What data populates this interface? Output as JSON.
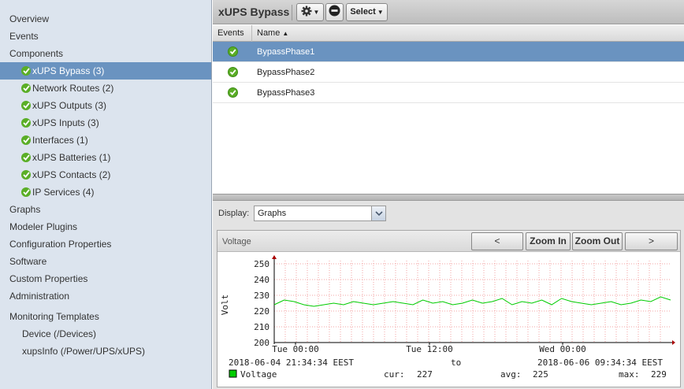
{
  "sidebar": {
    "items": [
      {
        "label": "Overview"
      },
      {
        "label": "Events"
      },
      {
        "label": "Components"
      },
      {
        "label": "xUPS Bypass (3)"
      },
      {
        "label": "Network Routes (2)"
      },
      {
        "label": "xUPS Outputs (3)"
      },
      {
        "label": "xUPS Inputs (3)"
      },
      {
        "label": "Interfaces (1)"
      },
      {
        "label": "xUPS Batteries (1)"
      },
      {
        "label": "xUPS Contacts (2)"
      },
      {
        "label": "IP Services (4)"
      },
      {
        "label": "Graphs"
      },
      {
        "label": "Modeler Plugins"
      },
      {
        "label": "Configuration Properties"
      },
      {
        "label": "Software"
      },
      {
        "label": "Custom Properties"
      },
      {
        "label": "Administration"
      },
      {
        "label": "Monitoring Templates"
      },
      {
        "label": "Device (/Devices)"
      },
      {
        "label": "xupsInfo (/Power/UPS/xUPS)"
      }
    ]
  },
  "toolbar": {
    "title": "xUPS Bypass",
    "gear_icon": "gear-icon",
    "stop_icon": "minus-circle-icon",
    "select_label": "Select"
  },
  "grid": {
    "columns": {
      "events": "Events",
      "name": "Name"
    },
    "rows": [
      {
        "name": "BypassPhase1",
        "status": "ok"
      },
      {
        "name": "BypassPhase2",
        "status": "ok"
      },
      {
        "name": "BypassPhase3",
        "status": "ok"
      }
    ]
  },
  "display": {
    "label": "Display:",
    "value": "Graphs"
  },
  "graph": {
    "title": "Voltage",
    "prev_label": "<",
    "zoom_in_label": "Zoom In",
    "zoom_out_label": "Zoom Out",
    "next_label": ">",
    "ylabel": "Volt",
    "start": "2018-06-04 21:34:34 EEST",
    "to": "to",
    "end": "2018-06-06 09:34:34 EEST",
    "legend": "Voltage",
    "cur_label": "cur:",
    "cur": "227",
    "avg_label": "avg:",
    "avg": "225",
    "max_label": "max:",
    "max": "229",
    "series_color": "#00cc00"
  },
  "chart_data": {
    "type": "line",
    "ylabel": "Volt",
    "ylim": [
      200,
      250
    ],
    "yticks": [
      "250",
      "240",
      "230",
      "220",
      "210",
      "200"
    ],
    "xticks": [
      "Tue 00:00",
      "Tue 12:00",
      "Wed 00:00"
    ],
    "grid": true,
    "series": [
      {
        "name": "Voltage",
        "color": "#00cc00",
        "values": [
          224,
          227,
          226,
          224,
          223,
          224,
          225,
          224,
          226,
          225,
          224,
          225,
          226,
          225,
          224,
          227,
          225,
          226,
          224,
          225,
          227,
          225,
          226,
          228,
          224,
          226,
          225,
          227,
          224,
          228,
          226,
          225,
          224,
          225,
          226,
          224,
          225,
          227,
          226,
          229,
          227
        ]
      }
    ]
  }
}
